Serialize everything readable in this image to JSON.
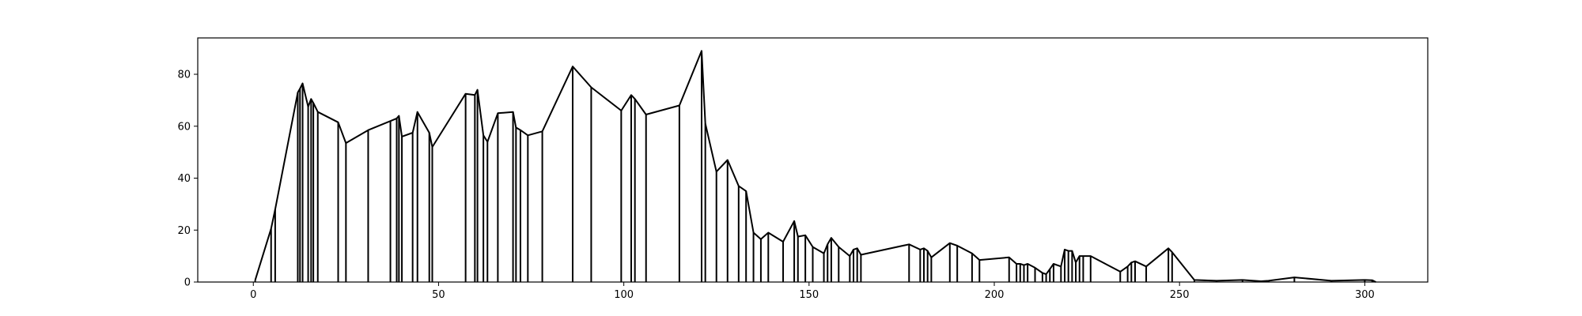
{
  "chart_data": {
    "type": "line",
    "title": "",
    "xlabel": "",
    "ylabel": "",
    "xlim": [
      -15,
      317
    ],
    "ylim": [
      0,
      94
    ],
    "grid": false,
    "legend": "none",
    "line_color": "#000000",
    "x_ticks": [
      0,
      50,
      100,
      150,
      200,
      250,
      300
    ],
    "x_tick_labels": [
      "0",
      "50",
      "100",
      "150",
      "200",
      "250",
      "300"
    ],
    "y_ticks": [
      0,
      20,
      40,
      60,
      80
    ],
    "y_tick_labels": [
      "0",
      "20",
      "40",
      "60",
      "80"
    ],
    "series": [
      {
        "x": [
          0.5,
          4.8,
          5.9,
          12.0,
          12.6,
          13.3,
          14.8,
          15.6,
          16.2,
          17.4,
          22.9,
          25.0,
          31.0,
          37.0,
          38.7,
          39.3,
          40.1,
          43.0,
          44.3,
          47.5,
          48.3,
          57.3,
          59.8,
          60.5,
          62.1,
          63.2,
          66.0,
          70.1,
          70.9,
          72.1,
          74.1,
          78.0,
          86.2,
          91.2,
          99.3,
          102.0,
          103.0,
          106.0,
          115.0,
          121.0,
          122.0,
          125.0,
          128.0,
          131.0,
          133.0,
          135.0,
          137.0,
          139.0,
          143.0,
          146.0,
          147.0,
          149.0,
          151.0,
          154.0,
          155.0,
          156.0,
          158.0,
          161.0,
          162.0,
          163.0,
          164.0,
          177.0,
          180.0,
          181.0,
          182.0,
          183.0,
          188.0,
          190.0,
          194.0,
          196.0,
          204.0,
          206.0,
          207.0,
          208.0,
          209.0,
          211.0,
          213.0,
          214.0,
          215.0,
          216.0,
          218.0,
          219.0,
          220.0,
          221.0,
          222.0,
          223.0,
          224.0,
          226.0,
          234.0,
          236.0,
          237.0,
          238.0,
          241.0,
          247.0,
          248.0,
          254.0,
          260.0,
          267.0,
          272.0,
          274.0,
          281.0,
          291.0,
          300.0,
          302.0,
          303.0
        ],
        "y": [
          0.7,
          20.5,
          28.0,
          73.0,
          74.5,
          76.5,
          67.5,
          70.5,
          69.0,
          65.5,
          61.5,
          53.5,
          58.5,
          62.0,
          63.0,
          64.0,
          56.0,
          57.5,
          65.5,
          57.5,
          52.0,
          72.5,
          72.0,
          74.0,
          56.5,
          54.0,
          65.0,
          65.5,
          59.5,
          58.5,
          56.5,
          58.0,
          83.0,
          75.0,
          66.0,
          72.0,
          70.5,
          64.5,
          68.0,
          89.0,
          61.0,
          42.5,
          47.0,
          37.0,
          35.0,
          19.0,
          16.5,
          19.0,
          15.5,
          23.5,
          17.5,
          18.0,
          13.5,
          11.0,
          14.5,
          17.0,
          13.5,
          10.0,
          12.5,
          13.0,
          10.5,
          14.5,
          12.5,
          13.0,
          12.0,
          9.5,
          15.0,
          14.0,
          11.0,
          8.5,
          9.5,
          7.0,
          7.0,
          6.5,
          7.0,
          5.5,
          3.5,
          3.0,
          5.0,
          7.0,
          6.0,
          12.5,
          12.0,
          12.0,
          7.5,
          10.0,
          10.0,
          10.0,
          4.0,
          6.0,
          7.5,
          8.0,
          6.0,
          13.0,
          11.5,
          0.8,
          0.5,
          0.8,
          0.3,
          0.5,
          1.8,
          0.5,
          0.8,
          0.7,
          0.0
        ]
      }
    ]
  }
}
